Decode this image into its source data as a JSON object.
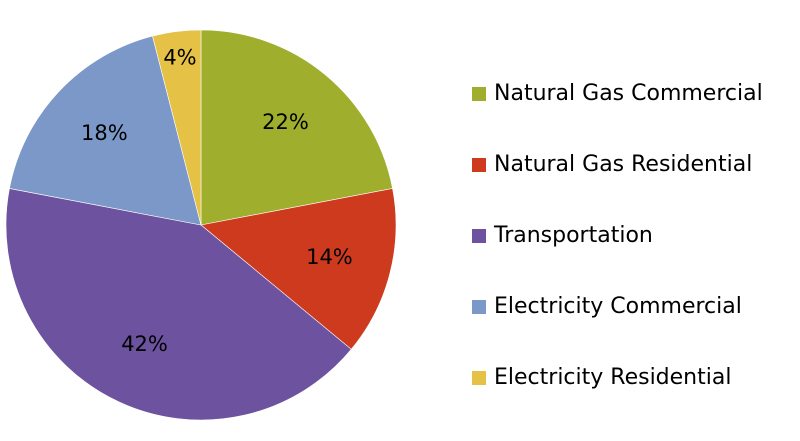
{
  "chart_data": {
    "type": "pie",
    "start_angle_deg": 0,
    "direction": "clockwise",
    "slices": [
      {
        "label": "Natural Gas Commercial",
        "value": 22,
        "value_label": "22%",
        "color": "#9fae2c"
      },
      {
        "label": "Natural Gas Residential",
        "value": 14,
        "value_label": "14%",
        "color": "#ce3a1e"
      },
      {
        "label": "Transportation",
        "value": 42,
        "value_label": "42%",
        "color": "#6d52a0"
      },
      {
        "label": "Electricity Commercial",
        "value": 18,
        "value_label": "18%",
        "color": "#7b98c8"
      },
      {
        "label": "Electricity Residential",
        "value": 4,
        "value_label": "4%",
        "color": "#e5c245"
      }
    ],
    "legend_position": "right"
  }
}
